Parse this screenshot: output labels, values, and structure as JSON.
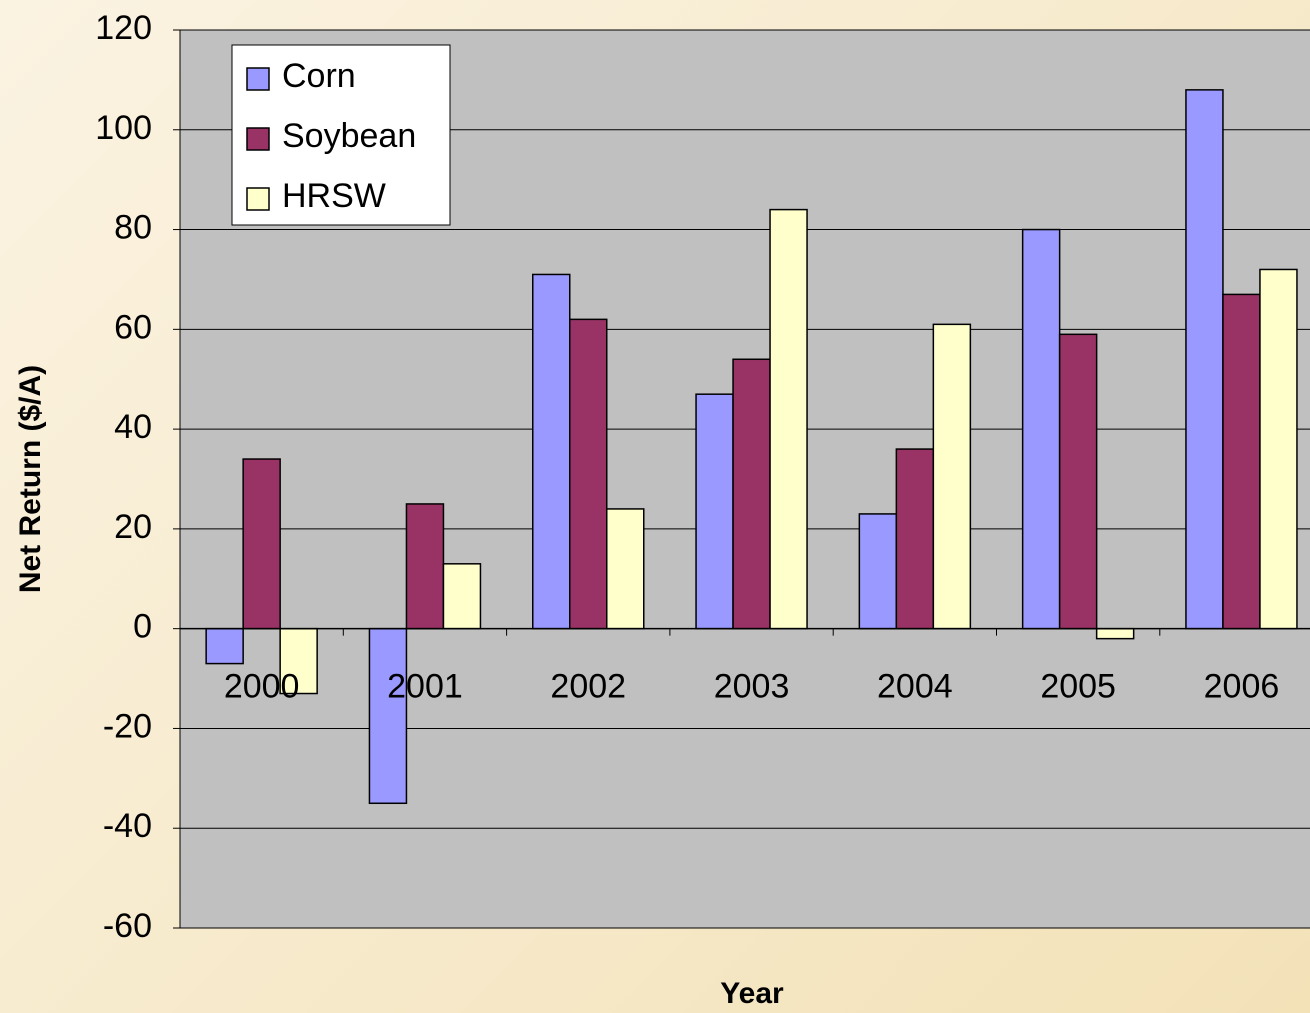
{
  "chart_data": {
    "type": "bar",
    "x_label": "Year",
    "y_label": "Net Return ($/A)",
    "categories": [
      "2000",
      "2001",
      "2002",
      "2003",
      "2004",
      "2005",
      "2006"
    ],
    "series": [
      {
        "name": "Corn",
        "color": "#9999ff",
        "values": [
          -7,
          -35,
          71,
          47,
          23,
          80,
          108
        ]
      },
      {
        "name": "Soybean",
        "color": "#993366",
        "values": [
          34,
          25,
          62,
          54,
          36,
          59,
          67
        ]
      },
      {
        "name": "HRSW",
        "color": "#ffffcc",
        "values": [
          -13,
          13,
          24,
          84,
          61,
          -2,
          72
        ]
      }
    ],
    "ylim": [
      -60,
      120
    ],
    "yticks": [
      -60,
      -40,
      -20,
      0,
      20,
      40,
      60,
      80,
      100,
      120
    ],
    "grid": true,
    "legend": "upper left"
  }
}
